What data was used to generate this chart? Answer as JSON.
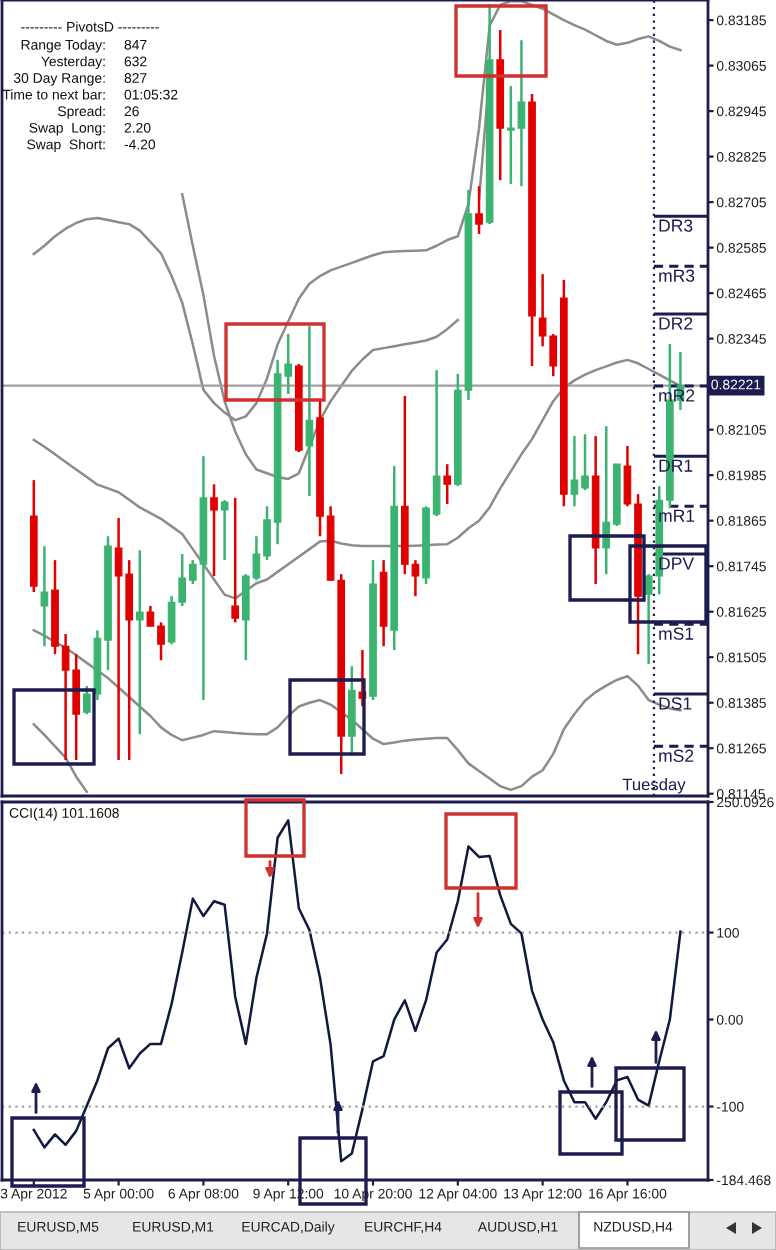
{
  "chart_data": [
    {
      "type": "candlestick",
      "categories": [
        null,
        null,
        null,
        null,
        null,
        null,
        null,
        null,
        null,
        null,
        null,
        null,
        null,
        null,
        null,
        null,
        null,
        null,
        null,
        null,
        null,
        null,
        null,
        null,
        null,
        null,
        null,
        null,
        null,
        null,
        null,
        null,
        null,
        null,
        null,
        null,
        null,
        null,
        null,
        null,
        null,
        null,
        null,
        null,
        null,
        null,
        null,
        null,
        null,
        null,
        null,
        null,
        null,
        null,
        null,
        null,
        null,
        null,
        null,
        null,
        null,
        null
      ],
      "colors": [
        "#e00000",
        "#3cb371",
        "#e00000",
        "#e00000",
        "#e00000",
        "#3cb371",
        "#3cb371",
        "#3cb371",
        "#e00000",
        "#e00000",
        "#3cb371",
        "#e00000",
        "#e00000",
        "#3cb371",
        "#3cb371",
        "#3cb371",
        "#3cb371",
        "#e00000",
        "#3cb371",
        "#e00000",
        "#3cb371",
        "#3cb371",
        "#3cb371",
        "#3cb371",
        "#3cb371",
        "#e00000",
        "#3cb371",
        "#e00000",
        "#e00000",
        "#e00000",
        "#3cb371",
        "#e00000",
        "#3cb371",
        "#e00000",
        "#3cb371",
        "#e00000",
        "#e00000",
        "#3cb371",
        "#3cb371",
        "#e00000",
        "#3cb371",
        "#3cb371",
        "#e00000",
        "#3cb371",
        "#e00000",
        "#3cb371",
        "#3cb371",
        "#e00000",
        "#e00000",
        "#e00000",
        "#e00000",
        "#3cb371",
        "#3cb371",
        "#e00000",
        "#3cb371",
        "#3cb371",
        "#e00000",
        "#e00000",
        "#3cb371",
        "#3cb371",
        "#3cb371",
        "#3cb371"
      ],
      "ohlc": [
        [
          0.81877,
          0.81972,
          0.81677,
          0.81692
        ],
        [
          0.8164,
          0.81798,
          0.81534,
          0.81677
        ],
        [
          0.81682,
          0.81761,
          0.81513,
          0.81534
        ],
        [
          0.81534,
          0.81566,
          0.81234,
          0.81471
        ],
        [
          0.81471,
          0.81513,
          0.81234,
          0.81355
        ],
        [
          0.8136,
          0.81429,
          0.81355,
          0.81408
        ],
        [
          0.81408,
          0.81576,
          0.81392,
          0.81555
        ],
        [
          0.8155,
          0.81824,
          0.81471,
          0.81798
        ],
        [
          0.81793,
          0.81872,
          0.81234,
          0.81719
        ],
        [
          0.81724,
          0.81761,
          0.81234,
          0.81603
        ],
        [
          0.81603,
          0.81787,
          0.81302,
          0.81624
        ],
        [
          0.81624,
          0.8164,
          0.81587,
          0.81587
        ],
        [
          0.81587,
          0.81597,
          0.81497,
          0.81539
        ],
        [
          0.81545,
          0.81666,
          0.81539,
          0.8165
        ],
        [
          0.8165,
          0.81777,
          0.8164,
          0.81714
        ],
        [
          0.81708,
          0.81761,
          0.81698,
          0.8175
        ],
        [
          0.8175,
          0.82035,
          0.81392,
          0.81925
        ],
        [
          0.81925,
          0.81961,
          0.81719,
          0.81893
        ],
        [
          0.81893,
          0.81919,
          0.81761,
          0.81914
        ],
        [
          0.8164,
          0.81925,
          0.81597,
          0.81608
        ],
        [
          0.81603,
          0.81724,
          0.81497,
          0.81719
        ],
        [
          0.81714,
          0.81824,
          0.81708,
          0.81777
        ],
        [
          0.81772,
          0.81903,
          0.81761,
          0.81867
        ],
        [
          0.81861,
          0.82289,
          0.81803,
          0.82252
        ],
        [
          0.82246,
          0.82357,
          0.82199,
          0.82278
        ],
        [
          0.82273,
          0.82278,
          0.82046,
          0.82051
        ],
        [
          0.82062,
          0.82378,
          0.8193,
          0.8213
        ],
        [
          0.82136,
          0.82183,
          0.81824,
          0.81877
        ],
        [
          0.81877,
          0.81903,
          0.81708,
          0.81708
        ],
        [
          0.81708,
          0.81724,
          0.81197,
          0.81297
        ],
        [
          0.81297,
          0.81481,
          0.81249,
          0.81418
        ],
        [
          0.81413,
          0.81524,
          0.81376,
          0.81397
        ],
        [
          0.81402,
          0.81761,
          0.81392,
          0.81698
        ],
        [
          0.81729,
          0.81761,
          0.81534,
          0.81587
        ],
        [
          0.81576,
          0.82009,
          0.81524,
          0.81903
        ],
        [
          0.81903,
          0.82194,
          0.81724,
          0.8175
        ],
        [
          0.8175,
          0.81761,
          0.81666,
          0.81719
        ],
        [
          0.81714,
          0.81903,
          0.81698,
          0.81898
        ],
        [
          0.81882,
          0.82262,
          0.81877,
          0.81983
        ],
        [
          0.81983,
          0.82014,
          0.81909,
          0.81961
        ],
        [
          0.81961,
          0.82252,
          0.81956,
          0.82209
        ],
        [
          0.82209,
          0.82737,
          0.82183,
          0.82674
        ],
        [
          0.82674,
          0.82747,
          0.82621,
          0.82647
        ],
        [
          0.82652,
          0.83227,
          0.82647,
          0.8308
        ],
        [
          0.8308,
          0.83159,
          0.82763,
          0.829
        ],
        [
          0.82895,
          0.83011,
          0.82753,
          0.829
        ],
        [
          0.829,
          0.83132,
          0.82747,
          0.82969
        ],
        [
          0.82969,
          0.8299,
          0.82273,
          0.82405
        ],
        [
          0.82399,
          0.82515,
          0.82325,
          0.82352
        ],
        [
          0.82352,
          0.82357,
          0.82246,
          0.82273
        ],
        [
          0.82452,
          0.825,
          0.81903,
          0.81935
        ],
        [
          0.81935,
          0.82088,
          0.81903,
          0.81972
        ],
        [
          0.81951,
          0.82093,
          0.81946,
          0.81983
        ],
        [
          0.81983,
          0.82088,
          0.81698,
          0.81793
        ],
        [
          0.81793,
          0.82114,
          0.81724,
          0.81861
        ],
        [
          0.81856,
          0.82014,
          0.81851,
          0.82014
        ],
        [
          0.82009,
          0.82062,
          0.81903,
          0.81909
        ],
        [
          0.81909,
          0.81935,
          0.81513,
          0.81666
        ],
        [
          0.81671,
          0.81724,
          0.81487,
          0.81719
        ],
        [
          0.81719,
          0.81956,
          0.81671,
          0.81919
        ],
        [
          0.81919,
          0.82331,
          0.81898,
          0.82183
        ],
        [
          0.82183,
          0.8231,
          0.82157,
          0.82221
        ]
      ],
      "series": [
        {
          "type": "line",
          "color": "#8c8c8c",
          "values": [
            0.82568,
            0.8259,
            0.82615,
            0.82635,
            0.8265,
            0.8266,
            0.82663,
            0.82658,
            0.82652,
            0.82647,
            0.8263,
            0.826,
            0.8257,
            0.8251,
            0.8244,
            0.8233,
            0.8221,
            0.82175,
            0.8215,
            0.8213,
            0.8214,
            0.82175,
            0.8224,
            0.8233,
            0.8239,
            0.8245,
            0.8249,
            0.8251,
            0.82525,
            0.82535,
            0.82545,
            0.82555,
            0.82565,
            0.82573,
            0.82575,
            0.82576,
            0.82577,
            0.82578,
            0.8259,
            0.82605,
            0.82615,
            0.827,
            0.829,
            0.8317,
            0.83225,
            0.83235,
            0.83235,
            0.83225,
            0.83215,
            0.832,
            0.83185,
            0.83172,
            0.8316,
            0.83145,
            0.8313,
            0.8312,
            0.83125,
            0.83135,
            0.83142,
            0.8313,
            0.83115,
            0.83106
          ]
        },
        {
          "type": "line",
          "color": "#8c8c8c",
          "values": [
            null,
            null,
            null,
            null,
            null,
            null,
            null,
            null,
            null,
            null,
            null,
            null,
            null,
            null,
            0.82726,
            0.8259,
            0.8246,
            0.823,
            0.8218,
            0.821,
            0.8204,
            0.82,
            0.8199,
            0.8198,
            0.81975,
            0.8199,
            0.8206,
            0.8213,
            0.8218,
            0.8222,
            0.8226,
            0.8229,
            0.82315,
            0.8232,
            0.82325,
            0.8233,
            0.82335,
            0.8234,
            0.8235,
            0.8237,
            0.82394,
            null,
            0.82711,
            0.8305,
            null,
            null,
            null,
            null,
            null,
            null,
            null,
            null,
            null,
            null,
            null,
            null,
            null,
            null,
            null,
            null,
            null,
            null
          ]
        },
        {
          "type": "line",
          "color": "#8c8c8c",
          "values": [
            0.82078,
            0.8206,
            0.8204,
            0.8202,
            0.82,
            0.8198,
            0.8196,
            0.8195,
            0.8194,
            0.8192,
            0.819,
            0.81885,
            0.8187,
            0.8185,
            0.8183,
            0.8179,
            0.8175,
            0.8171,
            0.8167,
            0.8166,
            0.8168,
            0.817,
            0.8171,
            0.8173,
            0.8175,
            0.8177,
            0.8179,
            0.8181,
            0.81812,
            0.81805,
            0.818,
            0.81798,
            0.81798,
            0.81798,
            0.81798,
            0.81798,
            0.81799,
            0.818,
            0.81802,
            0.81803,
            0.8182,
            0.81845,
            0.81865,
            0.819,
            0.8195,
            0.81995,
            0.8204,
            0.8208,
            0.8213,
            0.8218,
            0.82215,
            0.82235,
            0.8225,
            0.82262,
            0.82272,
            0.82282,
            0.82289,
            0.8228,
            0.82265,
            0.8225,
            0.82235,
            0.8222
          ]
        },
        {
          "type": "line",
          "color": "#8c8c8c",
          "values": [
            0.81576,
            0.81562,
            0.81545,
            0.8153,
            0.8151,
            0.8149,
            0.8147,
            0.8145,
            0.81425,
            0.814,
            0.81375,
            0.8135,
            0.8132,
            0.813,
            0.81286,
            0.81293,
            0.813,
            0.8131,
            0.81308,
            0.81305,
            0.81303,
            0.81302,
            0.81302,
            0.8132,
            0.8135,
            0.81375,
            0.81385,
            0.81392,
            0.8138,
            0.8136,
            0.8134,
            0.81315,
            0.8129,
            0.81276,
            0.8128,
            0.81285,
            0.81288,
            0.8129,
            0.81292,
            0.81292,
            0.8126,
            0.81225,
            0.81205,
            0.81185,
            0.81165,
            0.81155,
            0.81165,
            0.8119,
            0.81207,
            0.8125,
            0.81315,
            0.81355,
            0.8139,
            0.81413,
            0.8143,
            0.81445,
            0.81455,
            0.8143,
            0.81392,
            0.8138,
            0.8137,
            0.81365
          ]
        },
        {
          "type": "line",
          "color": "#8c8c8c",
          "values": [
            0.81328,
            0.813,
            0.8127,
            0.8124,
            0.8119,
            0.8115,
            null,
            null,
            null,
            null,
            null,
            null,
            null,
            null,
            null,
            null,
            null,
            null,
            null,
            null,
            null,
            null,
            null,
            null,
            null,
            null,
            null,
            null,
            null,
            null,
            null,
            null,
            null,
            null,
            null,
            null,
            null,
            null,
            null,
            null,
            null,
            null,
            null,
            null,
            null,
            null,
            null,
            null,
            null,
            null,
            null,
            null,
            null,
            null,
            null,
            null,
            null,
            null,
            null,
            null,
            null,
            null
          ]
        }
      ],
      "ylim": [
        0.81139,
        0.83238
      ],
      "yticks": [
        0.83185,
        0.83065,
        0.82945,
        0.82825,
        0.82705,
        0.82585,
        0.82465,
        0.82345,
        0.82105,
        0.81985,
        0.81865,
        0.81745,
        0.81625,
        0.81505,
        0.81385,
        0.81265,
        0.81145
      ],
      "tick_labels": "y",
      "ref_lines": [
        {
          "axis": "y",
          "value": 0.82221,
          "label": "0.82221",
          "color": "#a0a0a0"
        },
        {
          "axis": "y",
          "value": 0.82668,
          "label": "DR3",
          "line_style": "solid",
          "color": "#1c1c50"
        },
        {
          "axis": "y",
          "value": 0.82536,
          "label": "mR3",
          "line_style": "dashed",
          "color": "#1c1c50"
        },
        {
          "axis": "y",
          "value": 0.8241,
          "label": "DR2",
          "line_style": "solid",
          "color": "#1c1c50"
        },
        {
          "axis": "y",
          "value": 0.8222,
          "label": "mR2",
          "line_style": "dashed",
          "color": "#1c1c50"
        },
        {
          "axis": "y",
          "value": 0.82035,
          "label": "DR1",
          "line_style": "solid",
          "color": "#1c1c50"
        },
        {
          "axis": "y",
          "value": 0.81903,
          "label": "mR1",
          "line_style": "dashed",
          "color": "#1c1c50"
        },
        {
          "axis": "y",
          "value": 0.81777,
          "label": "DPV",
          "line_style": "solid",
          "color": "#1c1c50"
        },
        {
          "axis": "y",
          "value": 0.81592,
          "label": "mS1",
          "line_style": "dashed",
          "color": "#1c1c50"
        },
        {
          "axis": "y",
          "value": 0.81408,
          "label": "DS1",
          "line_style": "solid",
          "color": "#1c1c50"
        },
        {
          "axis": "y",
          "value": 0.8127,
          "label": "mS2",
          "line_style": "dashed",
          "color": "#1c1c50"
        }
      ],
      "annotations": [
        "--------- PivotsD ---------",
        "Range Today:",
        "847",
        "Yesterday:",
        "632",
        "30 Day Range:",
        "827",
        "Time to next bar:",
        "01:05:32",
        "Spread:",
        "26",
        "Swap  Long:",
        "2.20",
        "Swap  Short:",
        "-4.20",
        "Tuesday"
      ]
    },
    {
      "type": "line",
      "title": "CCI(14) 101.1608",
      "categories": [
        "3 Apr 2012",
        null,
        null,
        null,
        null,
        null,
        null,
        null,
        "5 Apr 00:00",
        null,
        null,
        null,
        null,
        null,
        null,
        null,
        "6 Apr 08:00",
        null,
        null,
        null,
        null,
        null,
        null,
        null,
        "9 Apr 12:00",
        null,
        null,
        null,
        null,
        null,
        null,
        null,
        "10 Apr 20:00",
        null,
        null,
        null,
        null,
        null,
        null,
        null,
        "12 Apr 04:00",
        null,
        null,
        null,
        null,
        null,
        null,
        null,
        "13 Apr 12:00",
        null,
        null,
        null,
        null,
        null,
        null,
        null,
        "16 Apr 16:00",
        null,
        null,
        null,
        null,
        null
      ],
      "series": [
        {
          "color": "#0f1a3c",
          "values": [
            -127,
            -147,
            -132,
            -144,
            -128,
            -99,
            -70,
            -33,
            -22,
            -56,
            -39,
            -28,
            -28,
            18,
            77,
            139,
            119,
            136,
            132,
            26,
            -28,
            48,
            99,
            209,
            229,
            128,
            103,
            48,
            -29,
            -163,
            -154,
            -103,
            -48,
            -42,
            0,
            22,
            -13,
            22,
            77,
            92,
            136,
            199,
            187,
            188,
            143,
            110,
            99,
            33,
            0,
            -26,
            -70,
            -95,
            -95,
            -114,
            -95,
            -70,
            -66,
            -92,
            -99,
            -48,
            0,
            101
          ]
        }
      ],
      "ylim": [
        -184.468,
        250.0926
      ],
      "yticks": [
        250.0926,
        100,
        {
          "value": 0,
          "label": "0.00"
        },
        -100,
        -184.468
      ],
      "ref_lines": [
        {
          "axis": "y",
          "value": 100,
          "line_style": "dotted",
          "color": "#a0a0a0"
        },
        {
          "axis": "y",
          "value": -100,
          "line_style": "dotted",
          "color": "#a0a0a0"
        }
      ],
      "annotations": [
        "EURUSD,M5",
        "EURUSD,M1",
        "EURCAD,Daily",
        "EURCHF,H4",
        "AUDUSD,H1",
        "NZDUSD,H4"
      ]
    }
  ]
}
